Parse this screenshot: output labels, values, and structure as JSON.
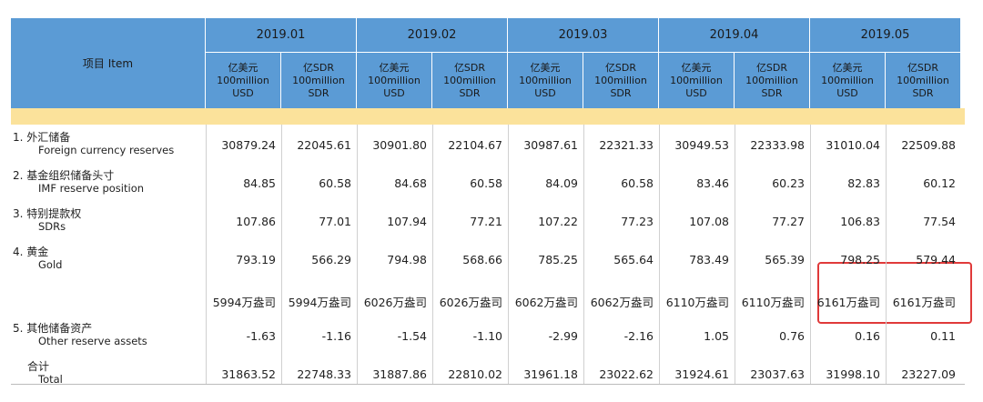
{
  "header": {
    "item_label": "项目 Item",
    "months": [
      "2019.01",
      "2019.02",
      "2019.03",
      "2019.04",
      "2019.05"
    ],
    "unit_usd": [
      "亿美元",
      "100million",
      "USD"
    ],
    "unit_sdr": [
      "亿SDR",
      "100million",
      "SDR"
    ]
  },
  "rows": [
    {
      "cn": "1. 外汇储备",
      "en": "Foreign currency reserves",
      "values": [
        "30879.24",
        "22045.61",
        "30901.80",
        "22104.67",
        "30987.61",
        "22321.33",
        "30949.53",
        "22333.98",
        "31010.04",
        "22509.88"
      ]
    },
    {
      "cn": "2. 基金组织储备头寸",
      "en": "IMF reserve position",
      "values": [
        "84.85",
        "60.58",
        "84.68",
        "60.58",
        "84.09",
        "60.58",
        "83.46",
        "60.23",
        "82.83",
        "60.12"
      ]
    },
    {
      "cn": "3. 特别提款权",
      "en": "SDRs",
      "values": [
        "107.86",
        "77.01",
        "107.94",
        "77.21",
        "107.22",
        "77.23",
        "107.08",
        "77.27",
        "106.83",
        "77.54"
      ]
    },
    {
      "cn": "4. 黄金",
      "en": "Gold",
      "values": [
        "793.19",
        "566.29",
        "794.98",
        "568.66",
        "785.25",
        "565.64",
        "783.49",
        "565.39",
        "798.25",
        "579.44"
      ]
    },
    {
      "cn": "",
      "en": "",
      "values": [
        "5994万盎司",
        "5994万盎司",
        "6026万盎司",
        "6026万盎司",
        "6062万盎司",
        "6062万盎司",
        "6110万盎司",
        "6110万盎司",
        "6161万盎司",
        "6161万盎司"
      ]
    },
    {
      "cn": "5. 其他储备资产",
      "en": "Other reserve assets",
      "values": [
        "-1.63",
        "-1.16",
        "-1.54",
        "-1.10",
        "-2.99",
        "-2.16",
        "1.05",
        "0.76",
        "0.16",
        "0.11"
      ]
    },
    {
      "cn": "合计",
      "en": "Total",
      "values": [
        "31863.52",
        "22748.33",
        "31887.86",
        "22810.02",
        "31961.18",
        "23022.62",
        "31924.61",
        "23037.63",
        "31998.10",
        "23227.09"
      ]
    }
  ],
  "colors": {
    "header_bg": "#5b9bd5",
    "stripe": "#fbe29b",
    "highlight_box": "#e03a3a"
  }
}
